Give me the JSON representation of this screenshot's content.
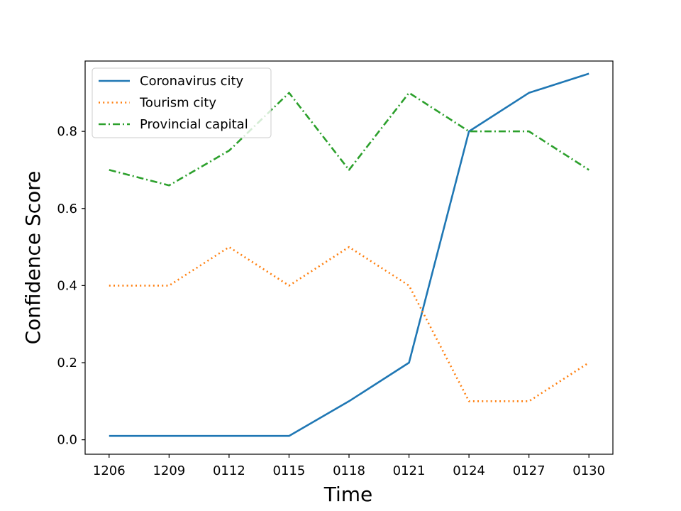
{
  "chart_data": {
    "type": "line",
    "title": "",
    "xlabel": "Time",
    "ylabel": "Confidence Score",
    "categories": [
      "1206",
      "1209",
      "0112",
      "0115",
      "0118",
      "0121",
      "0124",
      "0127",
      "0130"
    ],
    "ylim": [
      -0.0375,
      0.9825
    ],
    "yticks": [
      "0.0",
      "0.2",
      "0.4",
      "0.6",
      "0.8"
    ],
    "grid": false,
    "legend_position": "top-left",
    "series": [
      {
        "name": "Coronavirus city",
        "color": "#1f77b4",
        "style": "solid",
        "values": [
          0.01,
          0.01,
          0.01,
          0.01,
          0.1,
          0.2,
          0.8,
          0.9,
          0.95
        ]
      },
      {
        "name": "Tourism city",
        "color": "#ff7f0e",
        "style": "dotted",
        "values": [
          0.4,
          0.4,
          0.5,
          0.4,
          0.5,
          0.4,
          0.1,
          0.1,
          0.2
        ]
      },
      {
        "name": "Provincial capital",
        "color": "#2ca02c",
        "style": "dashdot",
        "values": [
          0.7,
          0.66,
          0.75,
          0.9,
          0.7,
          0.9,
          0.8,
          0.8,
          0.7
        ]
      }
    ]
  }
}
